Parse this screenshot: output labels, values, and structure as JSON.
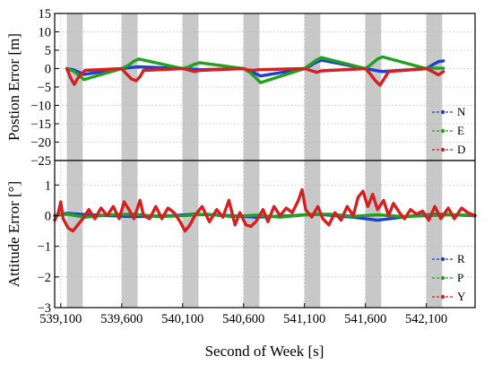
{
  "chart_data": [
    {
      "type": "line",
      "ylabel": "Postion Error [m]",
      "ylim": [
        -25,
        15
      ],
      "yticks": [
        15,
        10,
        5,
        0,
        -5,
        -10,
        -15,
        -20,
        -25
      ],
      "xlim": [
        539050,
        542500
      ],
      "grid": true,
      "legend_position": "bottom-right",
      "legend": [
        "N",
        "E",
        "D"
      ],
      "colors": {
        "N": "#1f3fd0",
        "E": "#22a022",
        "D": "#d42020"
      },
      "outage_windows": [
        [
          539150,
          539280
        ],
        [
          539600,
          539730
        ],
        [
          540100,
          540230
        ],
        [
          540600,
          540730
        ],
        [
          541100,
          541230
        ],
        [
          541600,
          541730
        ],
        [
          542100,
          542230
        ]
      ],
      "series": [
        {
          "name": "N",
          "points": [
            [
              539150,
              0
            ],
            [
              539200,
              -0.3
            ],
            [
              539250,
              -1.0
            ],
            [
              539290,
              -1.6
            ],
            [
              539600,
              0
            ],
            [
              539650,
              0.2
            ],
            [
              539700,
              0.4
            ],
            [
              539740,
              0.5
            ],
            [
              540100,
              0
            ],
            [
              540150,
              -0.1
            ],
            [
              540200,
              -0.2
            ],
            [
              540240,
              -0.3
            ],
            [
              540600,
              0
            ],
            [
              540650,
              -0.6
            ],
            [
              540700,
              -1.4
            ],
            [
              540740,
              -2.0
            ],
            [
              541100,
              0
            ],
            [
              541150,
              0.8
            ],
            [
              541200,
              1.8
            ],
            [
              541240,
              2.3
            ],
            [
              541600,
              0
            ],
            [
              541650,
              -0.3
            ],
            [
              541700,
              -0.6
            ],
            [
              541740,
              -0.8
            ],
            [
              542100,
              0
            ],
            [
              542150,
              1.0
            ],
            [
              542200,
              1.9
            ],
            [
              542240,
              2.1
            ]
          ]
        },
        {
          "name": "E",
          "points": [
            [
              539150,
              0
            ],
            [
              539200,
              -0.6
            ],
            [
              539250,
              -1.8
            ],
            [
              539290,
              -3.0
            ],
            [
              539600,
              0
            ],
            [
              539650,
              0.8
            ],
            [
              539700,
              2.0
            ],
            [
              539740,
              2.6
            ],
            [
              540100,
              0
            ],
            [
              540150,
              0.5
            ],
            [
              540200,
              1.2
            ],
            [
              540240,
              1.6
            ],
            [
              540600,
              0
            ],
            [
              540650,
              -1.0
            ],
            [
              540700,
              -2.5
            ],
            [
              540740,
              -3.8
            ],
            [
              541100,
              0
            ],
            [
              541150,
              1.2
            ],
            [
              541200,
              2.4
            ],
            [
              541240,
              3.0
            ],
            [
              541600,
              0
            ],
            [
              541650,
              1.2
            ],
            [
              541700,
              2.6
            ],
            [
              541740,
              3.2
            ],
            [
              542100,
              0
            ],
            [
              542150,
              0.1
            ],
            [
              542200,
              0.1
            ],
            [
              542240,
              0.1
            ]
          ]
        },
        {
          "name": "D",
          "points": [
            [
              539150,
              0
            ],
            [
              539180,
              -2.5
            ],
            [
              539210,
              -4.3
            ],
            [
              539240,
              -2.6
            ],
            [
              539270,
              -1.5
            ],
            [
              539300,
              -0.5
            ],
            [
              539600,
              0
            ],
            [
              539640,
              -1.5
            ],
            [
              539680,
              -2.8
            ],
            [
              539720,
              -3.3
            ],
            [
              539750,
              -2.2
            ],
            [
              539780,
              -0.5
            ],
            [
              540100,
              0
            ],
            [
              540150,
              -0.4
            ],
            [
              540200,
              -0.8
            ],
            [
              540240,
              -0.5
            ],
            [
              540600,
              0
            ],
            [
              540640,
              -0.4
            ],
            [
              540680,
              -0.5
            ],
            [
              540720,
              -0.3
            ],
            [
              541100,
              0
            ],
            [
              541150,
              -0.5
            ],
            [
              541200,
              -1.0
            ],
            [
              541240,
              -0.6
            ],
            [
              541600,
              0
            ],
            [
              541640,
              -1.5
            ],
            [
              541680,
              -3.2
            ],
            [
              541720,
              -4.5
            ],
            [
              541750,
              -3.0
            ],
            [
              541790,
              -0.8
            ],
            [
              542100,
              0
            ],
            [
              542150,
              -0.8
            ],
            [
              542200,
              -1.7
            ],
            [
              542240,
              -0.8
            ]
          ]
        }
      ]
    },
    {
      "type": "line",
      "xlabel": "Second of Week [s]",
      "ylabel": "Attitude Error [°]",
      "ylim": [
        -3,
        1.8
      ],
      "yticks": [
        1,
        0,
        -1,
        -2,
        -3
      ],
      "xlim": [
        539050,
        542500
      ],
      "xticks": [
        539100,
        539600,
        540100,
        540600,
        541100,
        541600,
        542100
      ],
      "xticklabels": [
        "539,100",
        "539,600",
        "540,100",
        "540,600",
        "541,100",
        "541,600",
        "542,100"
      ],
      "grid": true,
      "legend_position": "bottom-right",
      "legend": [
        "R",
        "P",
        "Y"
      ],
      "colors": {
        "R": "#1f3fd0",
        "P": "#22a022",
        "Y": "#d42020"
      },
      "outage_windows": [
        [
          539150,
          539280
        ],
        [
          539600,
          539730
        ],
        [
          540100,
          540230
        ],
        [
          540600,
          540730
        ],
        [
          541100,
          541230
        ],
        [
          541600,
          541730
        ],
        [
          542100,
          542230
        ]
      ],
      "series": [
        {
          "name": "R",
          "points": [
            [
              539050,
              0
            ],
            [
              539150,
              0.08
            ],
            [
              539250,
              0.05
            ],
            [
              539500,
              0.0
            ],
            [
              539700,
              -0.03
            ],
            [
              540000,
              0.0
            ],
            [
              540200,
              0.05
            ],
            [
              540500,
              0.0
            ],
            [
              540700,
              -0.05
            ],
            [
              541000,
              0.0
            ],
            [
              541200,
              0.05
            ],
            [
              541500,
              -0.05
            ],
            [
              541700,
              -0.15
            ],
            [
              542000,
              0.0
            ],
            [
              542200,
              0.05
            ],
            [
              542500,
              0.0
            ]
          ]
        },
        {
          "name": "P",
          "points": [
            [
              539050,
              0
            ],
            [
              539150,
              0.05
            ],
            [
              539300,
              -0.05
            ],
            [
              539500,
              0.03
            ],
            [
              539700,
              0.05
            ],
            [
              539900,
              -0.03
            ],
            [
              540100,
              0.0
            ],
            [
              540300,
              0.05
            ],
            [
              540500,
              -0.03
            ],
            [
              540700,
              0.02
            ],
            [
              540900,
              -0.05
            ],
            [
              541100,
              0.03
            ],
            [
              541300,
              0.05
            ],
            [
              541500,
              -0.02
            ],
            [
              541700,
              0.03
            ],
            [
              541900,
              -0.03
            ],
            [
              542100,
              0.0
            ],
            [
              542300,
              0.03
            ],
            [
              542500,
              0.0
            ]
          ]
        },
        {
          "name": "Y",
          "points": [
            [
              539050,
              -0.15
            ],
            [
              539080,
              0.1
            ],
            [
              539100,
              0.45
            ],
            [
              539120,
              -0.1
            ],
            [
              539160,
              -0.4
            ],
            [
              539200,
              -0.5
            ],
            [
              539240,
              -0.3
            ],
            [
              539280,
              -0.1
            ],
            [
              539330,
              0.2
            ],
            [
              539380,
              -0.1
            ],
            [
              539430,
              0.25
            ],
            [
              539480,
              0.0
            ],
            [
              539530,
              0.3
            ],
            [
              539580,
              -0.1
            ],
            [
              539620,
              0.45
            ],
            [
              539660,
              0.2
            ],
            [
              539700,
              -0.1
            ],
            [
              539750,
              0.5
            ],
            [
              539780,
              0.0
            ],
            [
              539830,
              -0.1
            ],
            [
              539880,
              0.3
            ],
            [
              539930,
              -0.1
            ],
            [
              539980,
              0.25
            ],
            [
              540030,
              0.1
            ],
            [
              540080,
              -0.2
            ],
            [
              540120,
              -0.5
            ],
            [
              540160,
              -0.3
            ],
            [
              540200,
              0.0
            ],
            [
              540260,
              0.3
            ],
            [
              540320,
              -0.2
            ],
            [
              540380,
              0.2
            ],
            [
              540430,
              -0.05
            ],
            [
              540480,
              0.5
            ],
            [
              540530,
              -0.3
            ],
            [
              540570,
              0.1
            ],
            [
              540620,
              -0.3
            ],
            [
              540660,
              -0.35
            ],
            [
              540700,
              -0.2
            ],
            [
              540760,
              0.2
            ],
            [
              540800,
              -0.2
            ],
            [
              540850,
              0.3
            ],
            [
              540900,
              0.0
            ],
            [
              540950,
              0.25
            ],
            [
              541000,
              0.1
            ],
            [
              541050,
              0.5
            ],
            [
              541080,
              0.85
            ],
            [
              541110,
              0.2
            ],
            [
              541160,
              -0.05
            ],
            [
              541210,
              0.3
            ],
            [
              541250,
              -0.1
            ],
            [
              541300,
              -0.3
            ],
            [
              541350,
              0.1
            ],
            [
              541400,
              -0.15
            ],
            [
              541450,
              0.3
            ],
            [
              541500,
              0.0
            ],
            [
              541540,
              0.6
            ],
            [
              541580,
              0.8
            ],
            [
              541620,
              0.3
            ],
            [
              541660,
              0.7
            ],
            [
              541700,
              0.2
            ],
            [
              541750,
              0.5
            ],
            [
              541790,
              0.0
            ],
            [
              541830,
              0.4
            ],
            [
              541880,
              0.1
            ],
            [
              541920,
              -0.1
            ],
            [
              541970,
              0.2
            ],
            [
              542020,
              0.05
            ],
            [
              542070,
              0.15
            ],
            [
              542120,
              -0.15
            ],
            [
              542170,
              0.3
            ],
            [
              542220,
              -0.1
            ],
            [
              542280,
              0.25
            ],
            [
              542330,
              -0.1
            ],
            [
              542390,
              0.25
            ],
            [
              542440,
              0.1
            ],
            [
              542500,
              0.0
            ]
          ]
        }
      ]
    }
  ]
}
